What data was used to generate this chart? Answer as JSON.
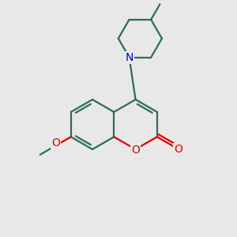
{
  "bg_color": "#e8e8e8",
  "bond_color": "#2d6b5e",
  "o_color": "#dd0000",
  "n_color": "#0000cc",
  "bond_lw": 1.6,
  "font_size": 10,
  "figsize": [
    3.0,
    3.0
  ],
  "dpi": 100,
  "xlim": [
    0,
    10
  ],
  "ylim": [
    0,
    10
  ]
}
